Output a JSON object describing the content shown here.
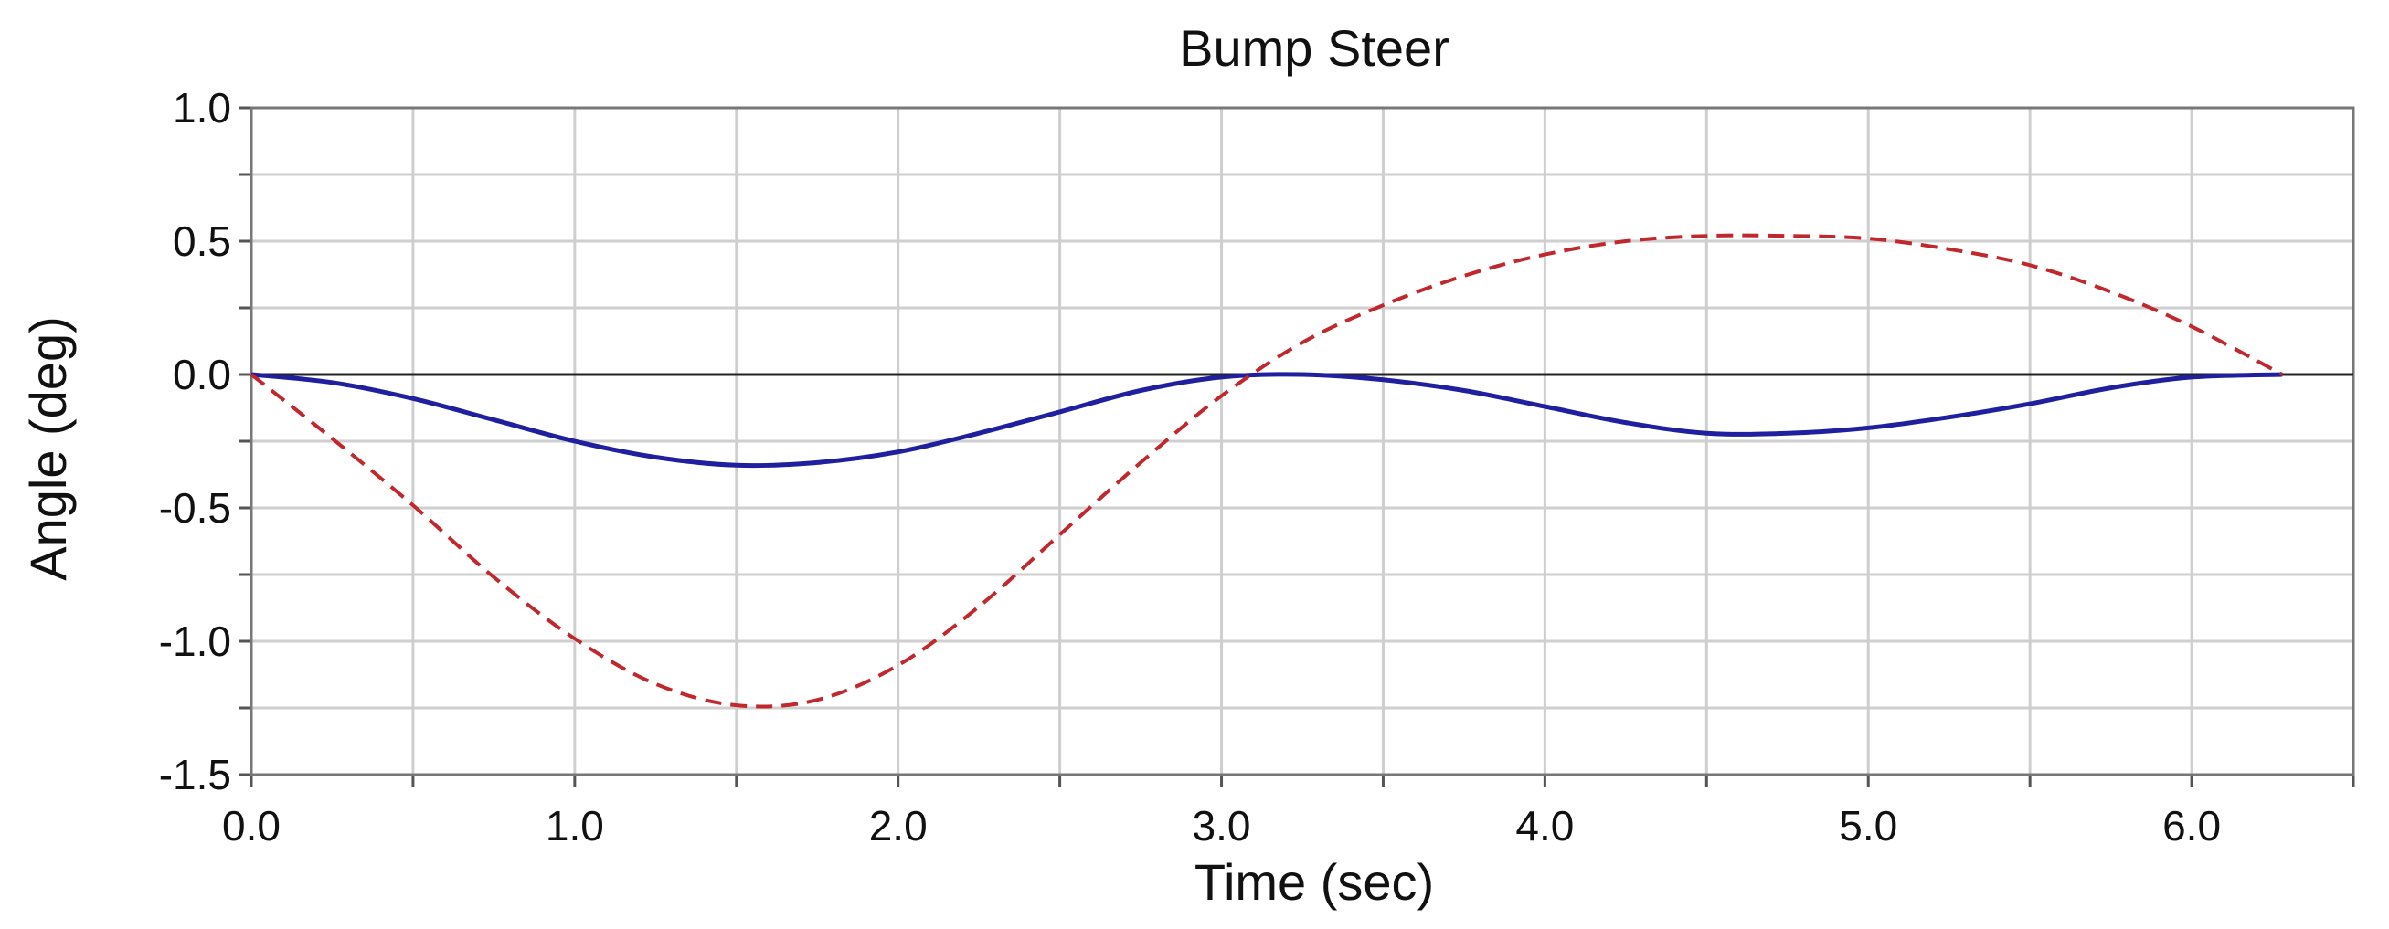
{
  "chart_data": {
    "type": "line",
    "title": "Bump Steer",
    "xlabel": "Time (sec)",
    "ylabel": "Angle (deg)",
    "xlim": [
      0,
      6.5
    ],
    "ylim": [
      -1.5,
      1.0
    ],
    "x_ticks": [
      "0.0",
      "1.0",
      "2.0",
      "3.0",
      "4.0",
      "5.0",
      "6.0"
    ],
    "y_ticks": [
      "1.0",
      "0.5",
      "0.0",
      "-0.5",
      "-1.0",
      "-1.5"
    ],
    "grid": true,
    "colors": {
      "series_solid": "#1f1fa0",
      "series_dashed": "#c0282d",
      "grid": "#cfcfcf",
      "zero_line": "#222222"
    },
    "series": [
      {
        "style": "solid",
        "x": [
          0,
          0.25,
          0.5,
          0.75,
          1.0,
          1.25,
          1.5,
          1.75,
          2.0,
          2.25,
          2.5,
          2.75,
          3.0,
          3.25,
          3.5,
          3.75,
          4.0,
          4.25,
          4.5,
          4.75,
          5.0,
          5.25,
          5.5,
          5.75,
          6.0,
          6.28
        ],
        "y": [
          0.0,
          -0.03,
          -0.09,
          -0.17,
          -0.25,
          -0.31,
          -0.34,
          -0.33,
          -0.29,
          -0.22,
          -0.14,
          -0.06,
          -0.01,
          0.0,
          -0.02,
          -0.06,
          -0.12,
          -0.18,
          -0.22,
          -0.22,
          -0.2,
          -0.16,
          -0.11,
          -0.05,
          -0.01,
          0.0
        ]
      },
      {
        "style": "dashed",
        "x": [
          0,
          0.25,
          0.5,
          0.75,
          1.0,
          1.25,
          1.5,
          1.75,
          2.0,
          2.25,
          2.5,
          2.75,
          3.0,
          3.25,
          3.5,
          3.75,
          4.0,
          4.25,
          4.5,
          4.75,
          5.0,
          5.25,
          5.5,
          5.75,
          6.0,
          6.28
        ],
        "y": [
          0.0,
          -0.24,
          -0.49,
          -0.76,
          -0.99,
          -1.16,
          -1.24,
          -1.22,
          -1.09,
          -0.87,
          -0.6,
          -0.33,
          -0.08,
          0.12,
          0.26,
          0.37,
          0.45,
          0.5,
          0.52,
          0.52,
          0.51,
          0.47,
          0.41,
          0.31,
          0.18,
          0.0
        ]
      }
    ]
  }
}
